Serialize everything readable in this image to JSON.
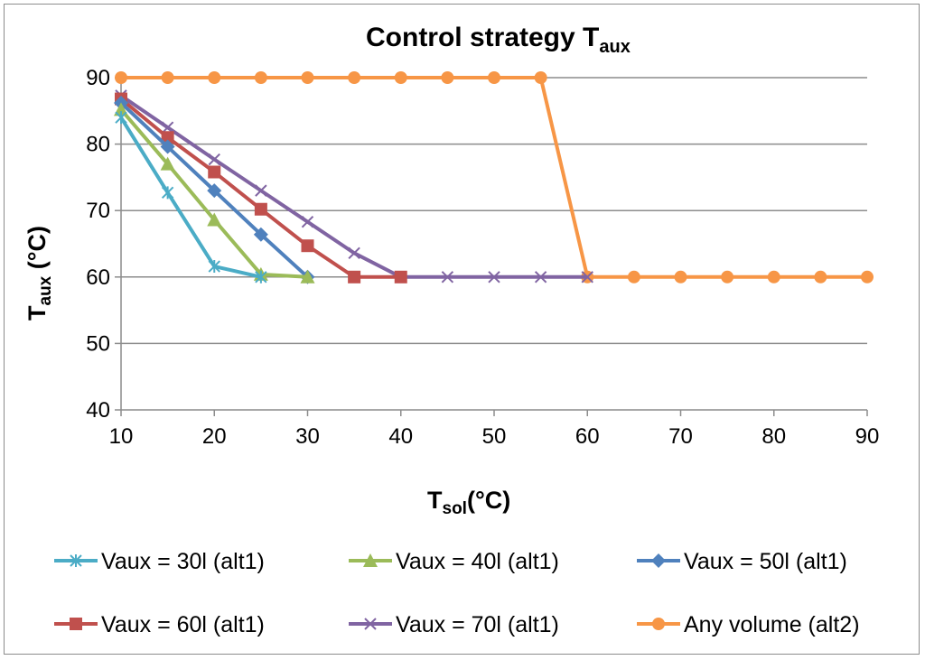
{
  "chart_data": {
    "type": "line",
    "title": "Control strategy T",
    "title_sub": "aux",
    "xlabel": "T",
    "xlabel_sub": "sol",
    "xlabel_unit": "(°C)",
    "ylabel": "T",
    "ylabel_sub": "aux",
    "ylabel_unit": " (°C)",
    "x_ticks": [
      10,
      20,
      30,
      40,
      50,
      60,
      70,
      80,
      90
    ],
    "y_ticks": [
      40,
      50,
      60,
      70,
      80,
      90
    ],
    "ylim": [
      40,
      90
    ],
    "grid": "horizontal",
    "legend_position": "bottom",
    "series": [
      {
        "name": "Vaux = 30l (alt1)",
        "color": "#4bacc6",
        "marker": "asterisk",
        "x": [
          10,
          15,
          20,
          25
        ],
        "y": [
          84,
          72.7,
          61.6,
          60
        ]
      },
      {
        "name": "Vaux = 40l (alt1)",
        "color": "#9bbb59",
        "marker": "triangle",
        "x": [
          10,
          15,
          20,
          25,
          30
        ],
        "y": [
          85.2,
          77,
          68.6,
          60.4,
          60
        ]
      },
      {
        "name": "Vaux = 50l (alt1)",
        "color": "#4f81bd",
        "marker": "diamond",
        "x": [
          10,
          15,
          20,
          25,
          30
        ],
        "y": [
          86.2,
          79.6,
          73,
          66.4,
          60
        ]
      },
      {
        "name": "Vaux = 60l (alt1)",
        "color": "#c0504d",
        "marker": "square",
        "x": [
          10,
          15,
          20,
          25,
          30,
          35,
          40
        ],
        "y": [
          86.8,
          81,
          75.8,
          70.2,
          64.7,
          60,
          60
        ]
      },
      {
        "name": "Vaux = 70l (alt1)",
        "color": "#8064a2",
        "marker": "x",
        "x": [
          10,
          15,
          20,
          25,
          30,
          35,
          40,
          45,
          50,
          55,
          60
        ],
        "y": [
          87.3,
          82.5,
          77.7,
          73,
          68.3,
          63.6,
          60,
          60,
          60,
          60,
          60
        ]
      },
      {
        "name": "Any volume (alt2)",
        "color": "#f79646",
        "marker": "circle",
        "x": [
          10,
          15,
          20,
          25,
          30,
          35,
          40,
          45,
          50,
          55,
          60,
          65,
          70,
          75,
          80,
          85,
          90
        ],
        "y": [
          90,
          90,
          90,
          90,
          90,
          90,
          90,
          90,
          90,
          90,
          60,
          60,
          60,
          60,
          60,
          60,
          60
        ]
      }
    ]
  }
}
